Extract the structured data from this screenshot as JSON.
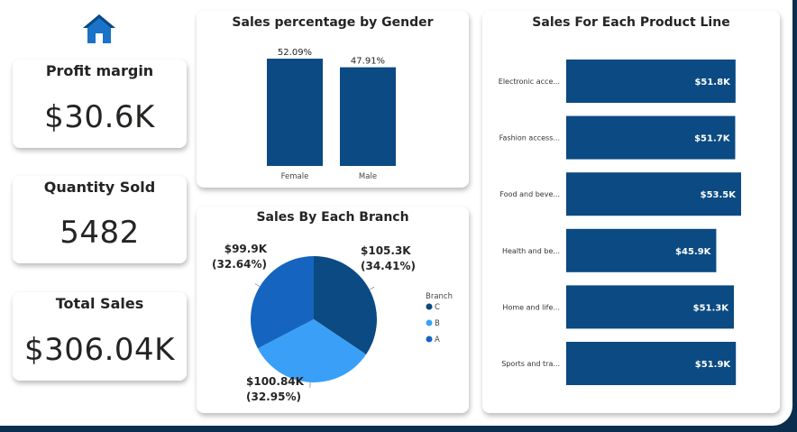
{
  "colors": {
    "primary": "#0b4a82",
    "branch_c": "#0b4a82",
    "branch_b": "#3aa0f7",
    "branch_a": "#1565c0"
  },
  "home_icon": "home-icon",
  "kpis": [
    {
      "title": "Profit margin",
      "value": "$30.6K"
    },
    {
      "title": "Quantity Sold",
      "value": "5482"
    },
    {
      "title": "Total Sales",
      "value": "$306.04K"
    }
  ],
  "gender_chart": {
    "title": "Sales percentage by Gender",
    "chart_data": {
      "type": "bar",
      "categories": [
        "Female",
        "Male"
      ],
      "values": [
        52.09,
        47.91
      ],
      "value_labels": [
        "52.09%",
        "47.91%"
      ],
      "ylim": [
        0,
        60
      ]
    }
  },
  "branch_chart": {
    "title": "Sales By Each Branch",
    "legend_title": "Branch",
    "chart_data": {
      "type": "pie",
      "categories": [
        "C",
        "B",
        "A"
      ],
      "values": [
        105.3,
        100.84,
        99.9
      ],
      "percents": [
        34.41,
        32.95,
        32.64
      ],
      "value_labels": [
        "$105.3K",
        "$100.84K",
        "$99.9K"
      ],
      "percent_labels": [
        "(34.41%)",
        "(32.95%)",
        "(32.64%)"
      ],
      "colors": [
        "#0b4a82",
        "#3aa0f7",
        "#1565c0"
      ]
    }
  },
  "product_chart": {
    "title": "Sales For Each Product Line",
    "chart_data": {
      "type": "bar",
      "orientation": "horizontal",
      "categories": [
        "Electronic acce...",
        "Fashion access...",
        "Food and beve...",
        "Health and be...",
        "Home and life...",
        "Sports and tra..."
      ],
      "values": [
        51.8,
        51.7,
        53.5,
        45.9,
        51.3,
        51.9
      ],
      "value_labels": [
        "$51.8K",
        "$51.7K",
        "$53.5K",
        "$45.9K",
        "$51.3K",
        "$51.9K"
      ],
      "xlim": [
        0,
        53.5
      ]
    }
  }
}
